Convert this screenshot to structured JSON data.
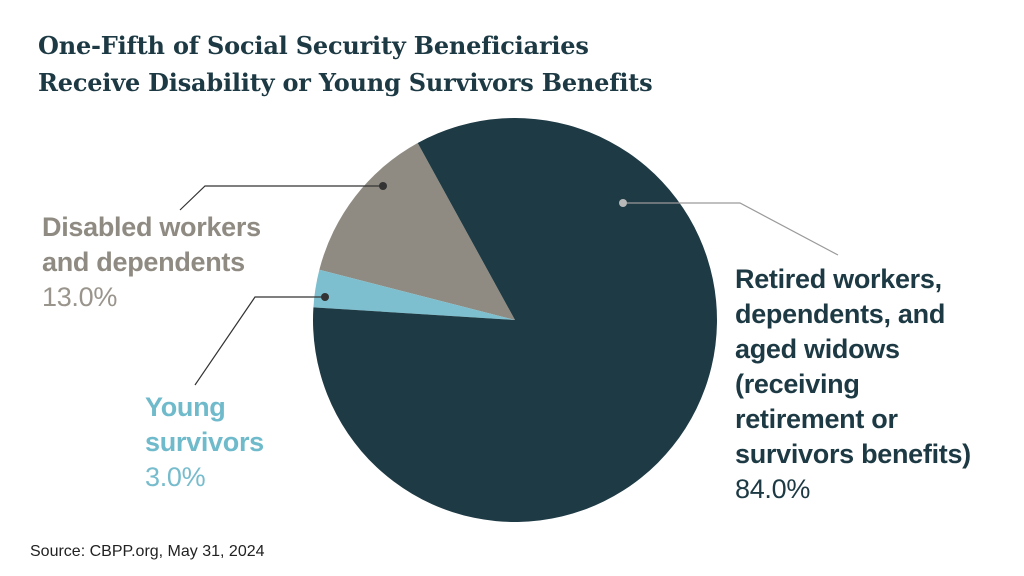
{
  "title_lines": [
    "One-Fifth of Social Security Beneficiaries",
    "Receive Disability or Young Survivors Benefits"
  ],
  "source": "Source: CBPP.org, May 31, 2024",
  "chart_data": {
    "type": "pie",
    "title": "One-Fifth of Social Security Beneficiaries Receive Disability or Young Survivors Benefits",
    "slices": [
      {
        "key": "disabled",
        "label_lines": [
          "Disabled workers",
          "and dependents"
        ],
        "value": 13.0,
        "value_label": "13.0%",
        "color": "#8f8b82"
      },
      {
        "key": "young",
        "label_lines": [
          "Young",
          "survivors"
        ],
        "value": 3.0,
        "value_label": "3.0%",
        "color": "#7dbfcf"
      },
      {
        "key": "retired",
        "label_lines": [
          "Retired workers,",
          "dependents, and",
          "aged widows",
          "(receiving",
          "retirement or",
          "survivors benefits)"
        ],
        "value": 84.0,
        "value_label": "84.0%",
        "color": "#1e3a44"
      }
    ]
  }
}
